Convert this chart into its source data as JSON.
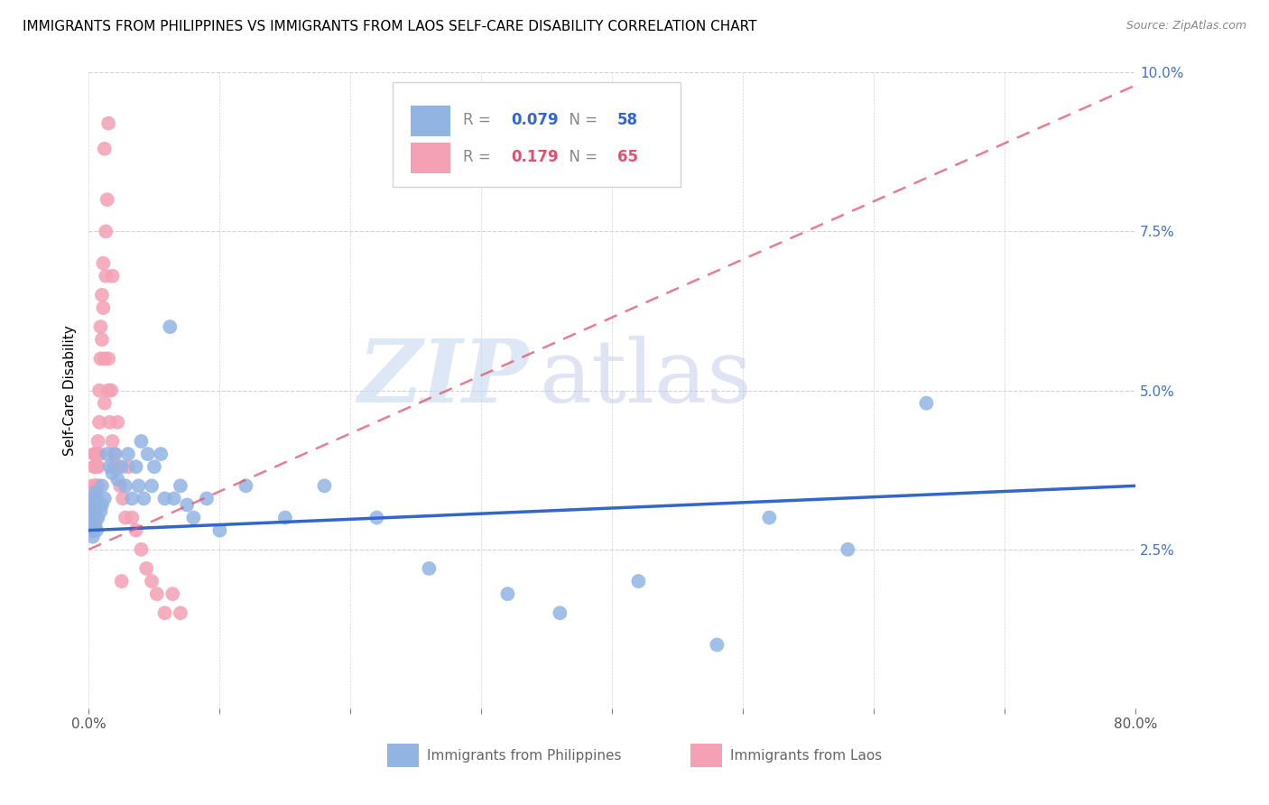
{
  "title": "IMMIGRANTS FROM PHILIPPINES VS IMMIGRANTS FROM LAOS SELF-CARE DISABILITY CORRELATION CHART",
  "source": "Source: ZipAtlas.com",
  "ylabel": "Self-Care Disability",
  "watermark": "ZIPatlas",
  "xlim": [
    0.0,
    0.8
  ],
  "ylim": [
    0.0,
    0.1
  ],
  "yticks": [
    0.0,
    0.025,
    0.05,
    0.075,
    0.1
  ],
  "ytick_labels": [
    "",
    "2.5%",
    "5.0%",
    "7.5%",
    "10.0%"
  ],
  "xticks": [
    0.0,
    0.1,
    0.2,
    0.3,
    0.4,
    0.5,
    0.6,
    0.7,
    0.8
  ],
  "xtick_labels": [
    "0.0%",
    "",
    "",
    "",
    "",
    "",
    "",
    "",
    "80.0%"
  ],
  "philippines_R": 0.079,
  "philippines_N": 58,
  "laos_R": 0.179,
  "laos_N": 65,
  "philippines_color": "#92b4e3",
  "laos_color": "#f4a0b5",
  "philippines_line_color": "#3366cc",
  "laos_line_color": "#e05070",
  "title_fontsize": 11,
  "axis_label_fontsize": 11,
  "tick_fontsize": 11,
  "philippines_x": [
    0.001,
    0.001,
    0.002,
    0.002,
    0.003,
    0.003,
    0.003,
    0.004,
    0.004,
    0.004,
    0.005,
    0.005,
    0.005,
    0.006,
    0.006,
    0.007,
    0.008,
    0.009,
    0.01,
    0.01,
    0.012,
    0.014,
    0.016,
    0.018,
    0.02,
    0.022,
    0.025,
    0.028,
    0.03,
    0.033,
    0.036,
    0.038,
    0.04,
    0.042,
    0.045,
    0.048,
    0.05,
    0.055,
    0.058,
    0.062,
    0.065,
    0.07,
    0.075,
    0.08,
    0.09,
    0.1,
    0.12,
    0.15,
    0.18,
    0.22,
    0.26,
    0.32,
    0.36,
    0.42,
    0.48,
    0.52,
    0.58,
    0.64
  ],
  "philippines_y": [
    0.03,
    0.032,
    0.028,
    0.03,
    0.031,
    0.033,
    0.027,
    0.03,
    0.032,
    0.028,
    0.034,
    0.029,
    0.031,
    0.033,
    0.028,
    0.03,
    0.032,
    0.031,
    0.035,
    0.032,
    0.033,
    0.04,
    0.038,
    0.037,
    0.04,
    0.036,
    0.038,
    0.035,
    0.04,
    0.033,
    0.038,
    0.035,
    0.042,
    0.033,
    0.04,
    0.035,
    0.038,
    0.04,
    0.033,
    0.06,
    0.033,
    0.035,
    0.032,
    0.03,
    0.033,
    0.028,
    0.035,
    0.03,
    0.035,
    0.03,
    0.022,
    0.018,
    0.015,
    0.02,
    0.01,
    0.03,
    0.025,
    0.048
  ],
  "laos_x": [
    0.001,
    0.001,
    0.001,
    0.002,
    0.002,
    0.002,
    0.003,
    0.003,
    0.003,
    0.003,
    0.004,
    0.004,
    0.004,
    0.004,
    0.005,
    0.005,
    0.005,
    0.005,
    0.006,
    0.006,
    0.006,
    0.006,
    0.007,
    0.007,
    0.007,
    0.008,
    0.008,
    0.008,
    0.009,
    0.009,
    0.01,
    0.01,
    0.011,
    0.011,
    0.012,
    0.012,
    0.013,
    0.013,
    0.014,
    0.015,
    0.015,
    0.016,
    0.017,
    0.018,
    0.019,
    0.02,
    0.022,
    0.024,
    0.026,
    0.028,
    0.03,
    0.033,
    0.036,
    0.04,
    0.044,
    0.048,
    0.052,
    0.058,
    0.064,
    0.07,
    0.012,
    0.015,
    0.018,
    0.022,
    0.025
  ],
  "laos_y": [
    0.03,
    0.032,
    0.028,
    0.031,
    0.033,
    0.028,
    0.03,
    0.033,
    0.028,
    0.035,
    0.038,
    0.04,
    0.03,
    0.033,
    0.038,
    0.04,
    0.035,
    0.03,
    0.04,
    0.038,
    0.035,
    0.03,
    0.038,
    0.042,
    0.035,
    0.05,
    0.045,
    0.04,
    0.06,
    0.055,
    0.065,
    0.058,
    0.07,
    0.063,
    0.055,
    0.048,
    0.075,
    0.068,
    0.08,
    0.05,
    0.055,
    0.045,
    0.05,
    0.042,
    0.038,
    0.04,
    0.038,
    0.035,
    0.033,
    0.03,
    0.038,
    0.03,
    0.028,
    0.025,
    0.022,
    0.02,
    0.018,
    0.015,
    0.018,
    0.015,
    0.088,
    0.092,
    0.068,
    0.045,
    0.02
  ]
}
